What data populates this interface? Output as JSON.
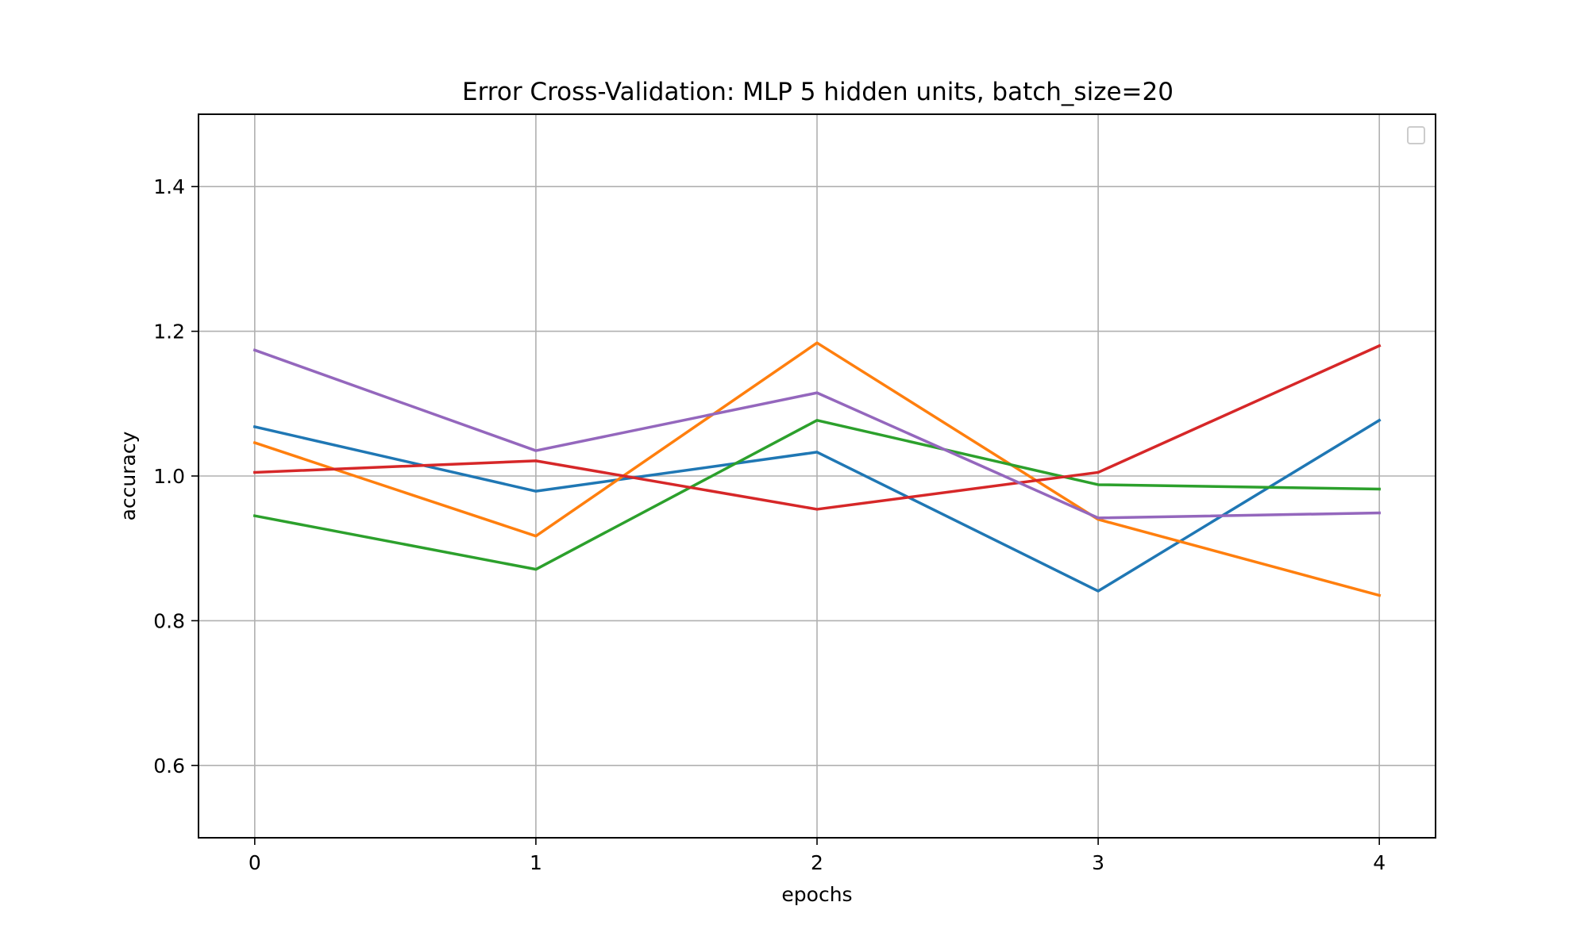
{
  "chart_data": {
    "type": "line",
    "title": "Error Cross-Validation: MLP 5 hidden units, batch_size=20",
    "xlabel": "epochs",
    "ylabel": "accuracy",
    "x": [
      0,
      1,
      2,
      3,
      4
    ],
    "x_ticks": [
      "0",
      "1",
      "2",
      "3",
      "4"
    ],
    "xlim": [
      -0.2,
      4.2
    ],
    "ylim": [
      0.5,
      1.5
    ],
    "y_ticks": [
      "0.6",
      "0.8",
      "1.0",
      "1.2",
      "1.4"
    ],
    "y_tick_values": [
      0.6,
      0.8,
      1.0,
      1.2,
      1.4
    ],
    "grid": true,
    "legend": {
      "placement": "upper right",
      "entries": []
    },
    "series": [
      {
        "color": "#1f77b4",
        "values": [
          1.068,
          0.979,
          1.033,
          0.841,
          1.077
        ]
      },
      {
        "color": "#ff7f0e",
        "values": [
          1.046,
          0.917,
          1.184,
          0.94,
          0.835
        ]
      },
      {
        "color": "#2ca02c",
        "values": [
          0.945,
          0.871,
          1.077,
          0.988,
          0.982
        ]
      },
      {
        "color": "#d62728",
        "values": [
          1.005,
          1.021,
          0.954,
          1.005,
          1.18
        ]
      },
      {
        "color": "#9467bd",
        "values": [
          1.174,
          1.035,
          1.115,
          0.942,
          0.949
        ]
      }
    ]
  }
}
